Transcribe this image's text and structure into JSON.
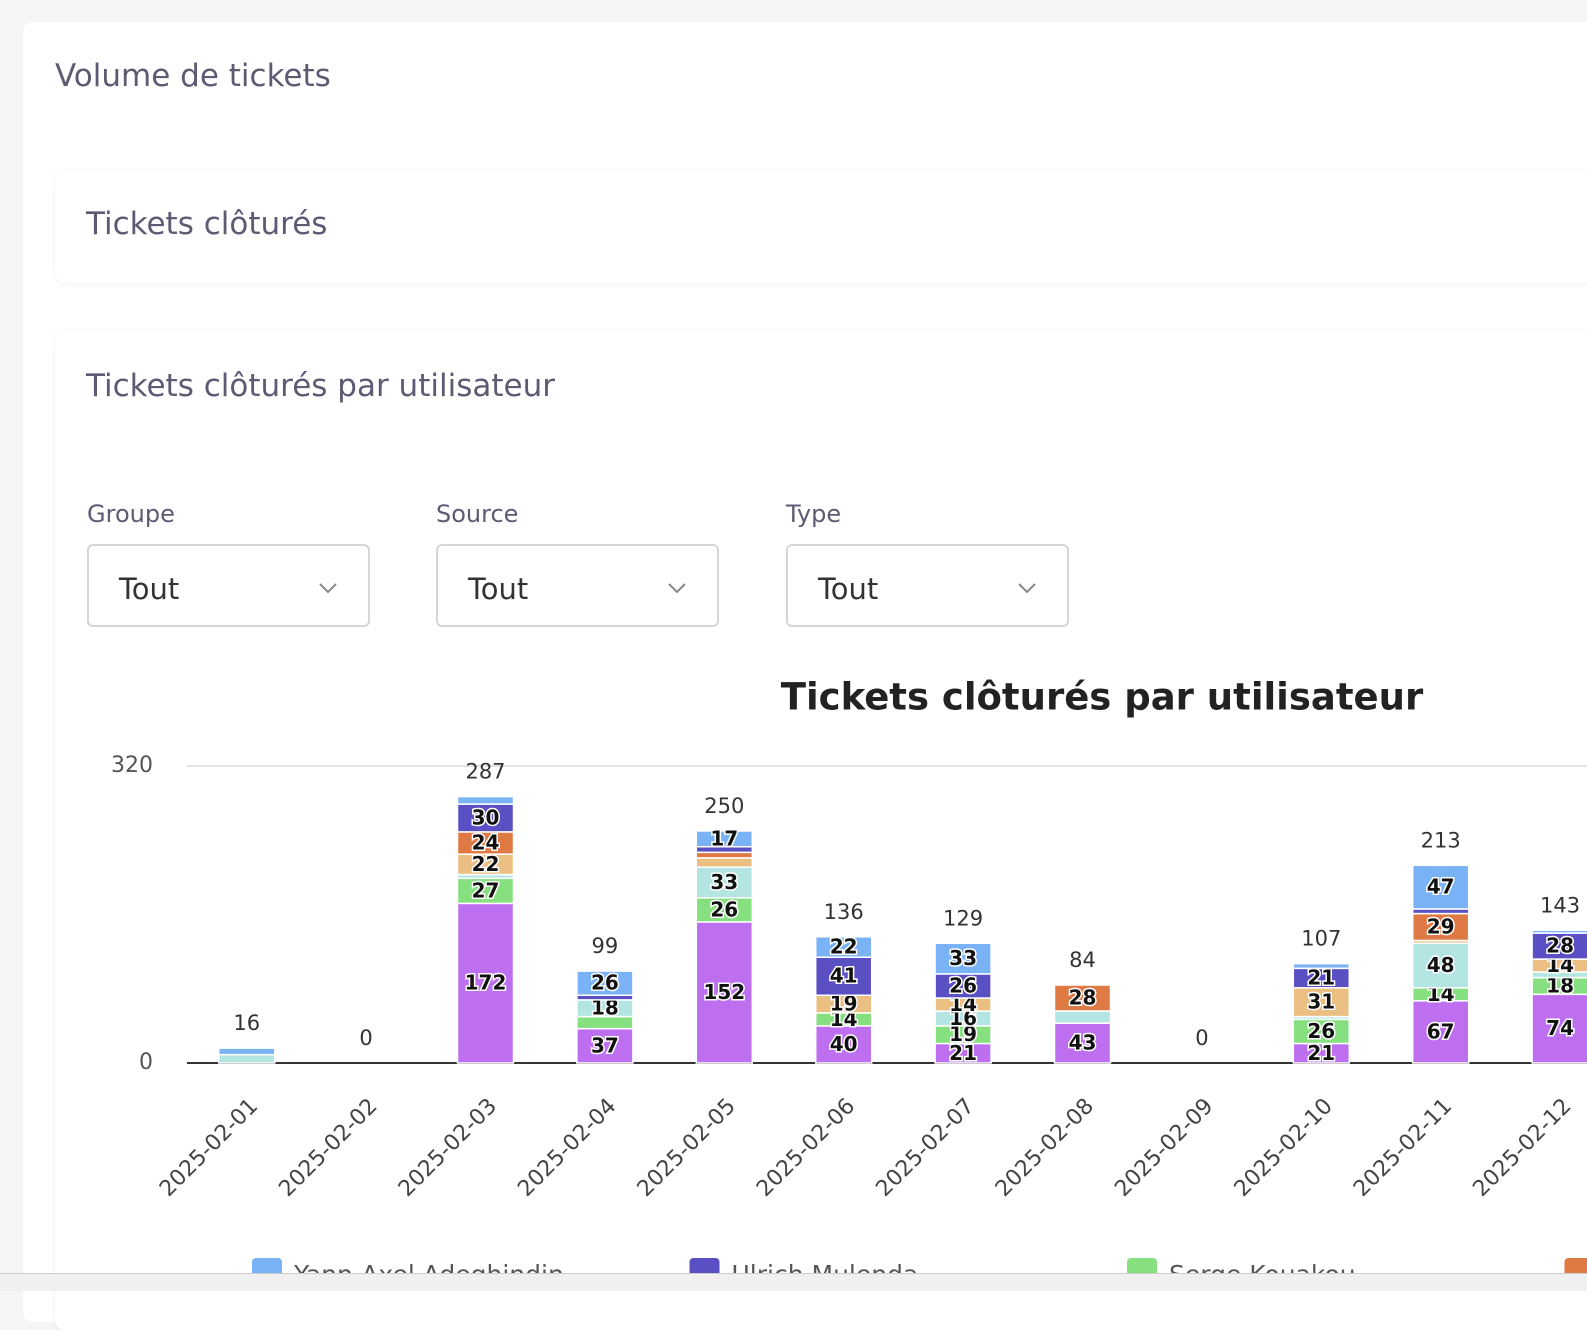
{
  "header": {
    "title": "Volume de tickets"
  },
  "section": {
    "title": "Tickets clôturés"
  },
  "card": {
    "title": "Tickets clôturés par utilisateur",
    "filters": [
      {
        "label": "Groupe",
        "value": "Tout"
      },
      {
        "label": "Source",
        "value": "Tout"
      },
      {
        "label": "Type",
        "value": "Tout"
      }
    ]
  },
  "chart_data": {
    "type": "bar",
    "stacked": true,
    "title": "Tickets clôturés par utilisateur",
    "categories": [
      "2025-02-01",
      "2025-02-02",
      "2025-02-03",
      "2025-02-04",
      "2025-02-05",
      "2025-02-06",
      "2025-02-07",
      "2025-02-08",
      "2025-02-09",
      "2025-02-10",
      "2025-02-11",
      "2025-02-12"
    ],
    "series": [
      {
        "name": "Yann-Axel Adeghindin",
        "color": "#7ab3f5",
        "values": [
          7,
          0,
          8,
          26,
          17,
          22,
          33,
          0,
          0,
          5,
          47,
          3
        ]
      },
      {
        "name": "Ulrich Mulenda",
        "color": "#5b4fc4",
        "values": [
          0,
          0,
          30,
          5,
          6,
          41,
          26,
          0,
          0,
          21,
          5,
          28
        ]
      },
      {
        "name": "Serge Kouakou",
        "color": "#86e07f",
        "values": [
          0,
          0,
          27,
          13,
          26,
          14,
          19,
          0,
          0,
          26,
          14,
          18
        ]
      },
      {
        "color": "#e07a45",
        "values": [
          0,
          0,
          24,
          0,
          6,
          0,
          0,
          28,
          0,
          0,
          29,
          0
        ]
      },
      {
        "color": "#bd6ff0",
        "values": [
          0,
          0,
          172,
          37,
          152,
          40,
          21,
          43,
          0,
          21,
          67,
          74
        ]
      },
      {
        "color": "#b3e6e3",
        "values": [
          9,
          0,
          4,
          18,
          33,
          0,
          16,
          13,
          0,
          3,
          48,
          6
        ]
      },
      {
        "color": "#ebbe82",
        "values": [
          0,
          0,
          22,
          0,
          10,
          19,
          14,
          0,
          0,
          31,
          3,
          14
        ]
      }
    ],
    "totals": [
      16,
      0,
      287,
      99,
      250,
      136,
      129,
      84,
      0,
      107,
      213,
      143
    ],
    "ylim": [
      0,
      320
    ],
    "yticks": [
      0,
      320
    ],
    "grid": true
  }
}
